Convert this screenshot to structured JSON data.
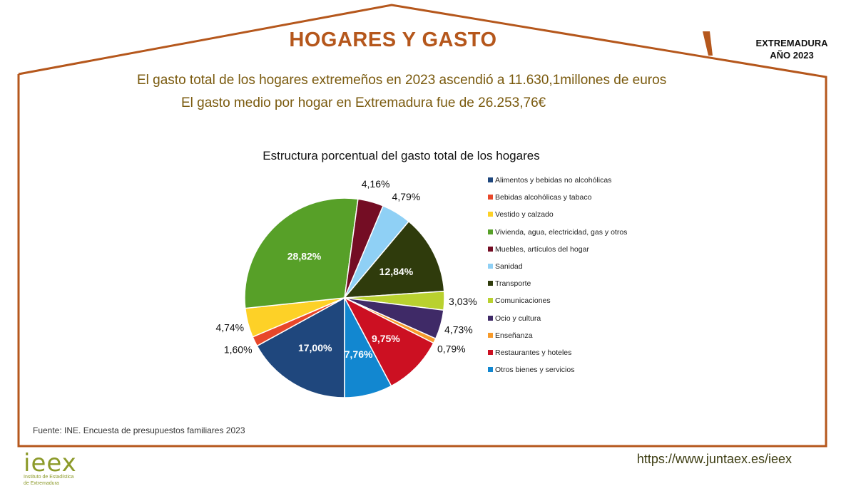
{
  "header": {
    "title": "HOGARES Y GASTO",
    "region_line1": "EXTREMADURA",
    "region_line2": "AÑO 2023"
  },
  "headline": {
    "line1": "El gasto total de los hogares extremeños en 2023 ascendió a 11.630,1millones de euros",
    "line2": "El gasto medio por hogar en Extremadura fue de  26.253,76€"
  },
  "chart_data": {
    "type": "pie",
    "title": "Estructura porcentual del gasto total de los hogares",
    "legend_position": "right",
    "slices": [
      {
        "label": "Alimentos y bebidas no alcohólicas",
        "value": 17.0,
        "display": "17,00%",
        "color": "#1f477d"
      },
      {
        "label": "Bebidas alcohólicas y tabaco",
        "value": 1.6,
        "display": "1,60%",
        "color": "#e8472a"
      },
      {
        "label": "Vestido y calzado",
        "value": 4.74,
        "display": "4,74%",
        "color": "#fdd127"
      },
      {
        "label": "Vivienda, agua, electricidad, gas y otros",
        "value": 28.82,
        "display": "28,82%",
        "color": "#57a028"
      },
      {
        "label": "Muebles, artículos del hogar",
        "value": 4.16,
        "display": "4,16%",
        "color": "#740d24"
      },
      {
        "label": "Sanidad",
        "value": 4.79,
        "display": "4,79%",
        "color": "#8fd0f5"
      },
      {
        "label": "Transporte",
        "value": 12.84,
        "display": "12,84%",
        "color": "#2f3b0c"
      },
      {
        "label": "Comunicaciones",
        "value": 3.03,
        "display": "3,03%",
        "color": "#b9d12f"
      },
      {
        "label": "Ocio y cultura",
        "value": 4.73,
        "display": "4,73%",
        "color": "#3f2a67"
      },
      {
        "label": "Enseñanza",
        "value": 0.79,
        "display": "0,79%",
        "color": "#f79a2a"
      },
      {
        "label": "Restaurantes y hoteles",
        "value": 9.75,
        "display": "9,75%",
        "color": "#cc1022"
      },
      {
        "label": "Otros bienes y servicios",
        "value": 7.76,
        "display": "7,76%",
        "color": "#1287d0"
      }
    ]
  },
  "source": "Fuente: INE. Encuesta de presupuestos familiares 2023",
  "footer": {
    "logo_text": "ieex",
    "logo_sub_line1": "Instituto de Estadística",
    "logo_sub_line2": "de Extremadura",
    "url": "https://www.juntaex.es/ieex"
  },
  "colors": {
    "frame": "#b5571c",
    "title": "#b5571c",
    "headline": "#7a5a0e",
    "logo": "#8c9a2a"
  }
}
